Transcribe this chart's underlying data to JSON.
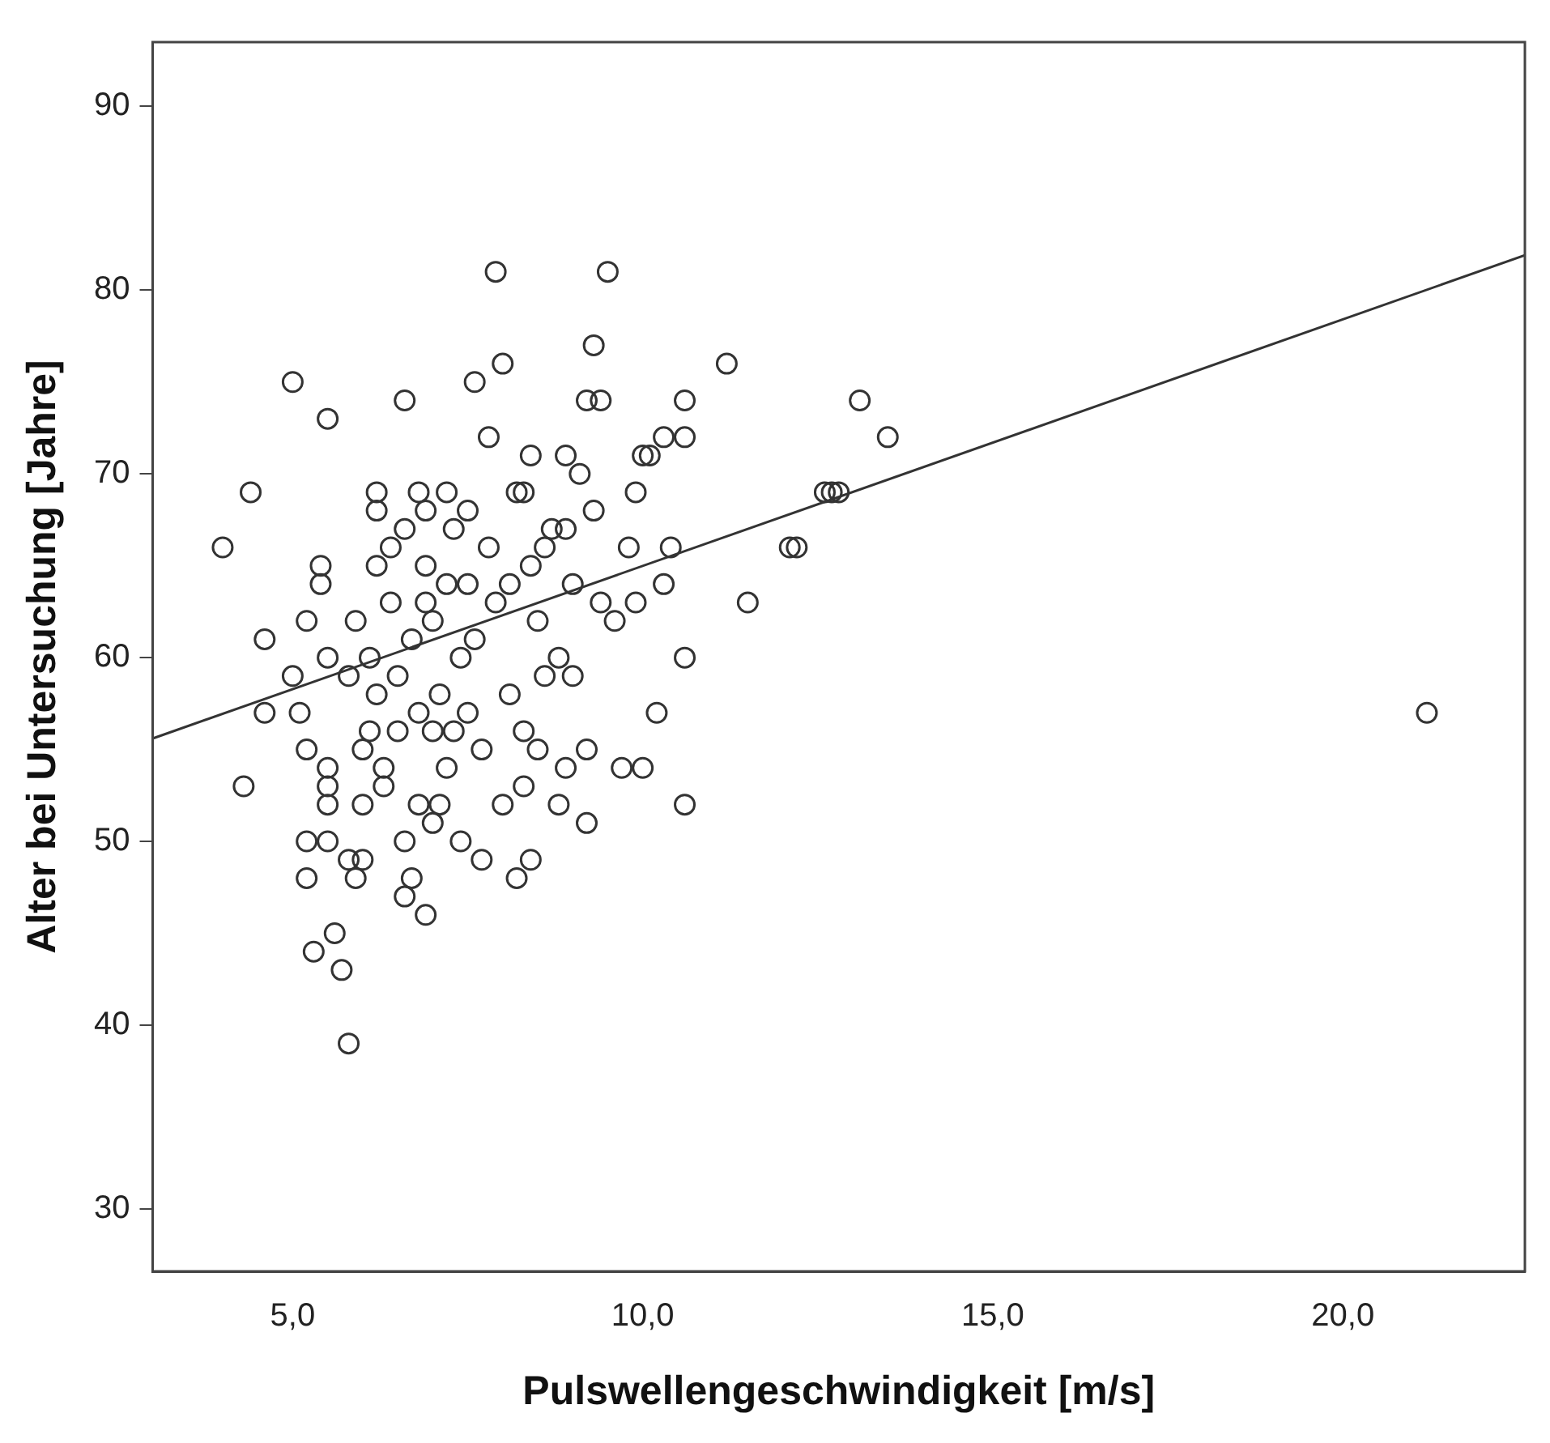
{
  "chart_data": {
    "type": "scatter",
    "xlabel": "Pulswellengeschwindigkeit [m/s]",
    "ylabel": "Alter bei Untersuchung [Jahre]",
    "xlim": [
      3,
      22.6
    ],
    "ylim": [
      26.6,
      93.5
    ],
    "xticks": [
      {
        "value": 5,
        "label": "5,0"
      },
      {
        "value": 10,
        "label": "10,0"
      },
      {
        "value": 15,
        "label": "15,0"
      },
      {
        "value": 20,
        "label": "20,0"
      }
    ],
    "yticks": [
      30,
      40,
      50,
      60,
      70,
      80,
      90
    ],
    "grid": false,
    "legend": false,
    "marker": "circle",
    "series": [
      {
        "type": "scatter",
        "color": "#333333",
        "x": [
          4.0,
          4.3,
          4.4,
          4.6,
          4.6,
          5.0,
          5.5,
          5.0,
          5.1,
          5.2,
          5.2,
          5.2,
          5.2,
          5.3,
          5.4,
          5.4,
          5.5,
          5.5,
          5.5,
          5.5,
          5.5,
          5.6,
          5.7,
          5.8,
          5.8,
          5.8,
          5.9,
          5.9,
          6.0,
          6.0,
          6.0,
          6.1,
          6.1,
          6.2,
          6.2,
          6.2,
          6.2,
          6.3,
          6.3,
          6.4,
          6.4,
          6.5,
          6.5,
          6.6,
          6.6,
          6.6,
          6.6,
          6.7,
          6.7,
          6.8,
          6.8,
          6.8,
          6.9,
          6.9,
          6.9,
          6.9,
          7.0,
          7.0,
          7.0,
          7.1,
          7.1,
          7.2,
          7.2,
          7.2,
          7.3,
          7.3,
          7.4,
          7.4,
          7.5,
          7.5,
          7.5,
          7.6,
          7.6,
          7.7,
          7.7,
          7.8,
          7.8,
          7.9,
          7.9,
          8.0,
          8.0,
          8.1,
          8.1,
          8.2,
          8.2,
          8.3,
          8.3,
          8.3,
          8.4,
          8.4,
          8.4,
          8.5,
          8.5,
          8.6,
          8.6,
          8.7,
          8.8,
          8.8,
          8.9,
          8.9,
          8.9,
          9.0,
          9.0,
          9.1,
          9.2,
          9.2,
          9.2,
          9.3,
          9.3,
          9.4,
          9.4,
          9.5,
          9.6,
          9.7,
          9.8,
          9.9,
          9.9,
          10.0,
          10.0,
          10.1,
          10.2,
          10.3,
          10.3,
          10.4,
          10.6,
          10.6,
          10.6,
          10.6,
          11.2,
          11.5,
          12.1,
          12.2,
          12.6,
          12.7,
          12.8,
          13.1,
          13.5,
          21.2
        ],
        "values": [
          66,
          53,
          69,
          61,
          57,
          75,
          73,
          59,
          57,
          62,
          55,
          50,
          48,
          44,
          65,
          64,
          60,
          54,
          53,
          52,
          50,
          45,
          43,
          39,
          49,
          59,
          62,
          48,
          49,
          55,
          52,
          60,
          56,
          65,
          68,
          69,
          58,
          54,
          53,
          66,
          63,
          56,
          59,
          74,
          67,
          47,
          50,
          61,
          48,
          69,
          52,
          57,
          46,
          65,
          63,
          68,
          51,
          56,
          62,
          58,
          52,
          64,
          54,
          69,
          67,
          56,
          60,
          50,
          68,
          64,
          57,
          75,
          61,
          55,
          49,
          72,
          66,
          81,
          63,
          76,
          52,
          58,
          64,
          69,
          48,
          69,
          56,
          53,
          71,
          65,
          49,
          62,
          55,
          66,
          59,
          67,
          60,
          52,
          67,
          71,
          54,
          64,
          59,
          70,
          74,
          55,
          51,
          77,
          68,
          74,
          63,
          81,
          62,
          54,
          66,
          69,
          63,
          71,
          54,
          71,
          57,
          64,
          72,
          66,
          74,
          72,
          60,
          52,
          76,
          63,
          66,
          66,
          69,
          69,
          69,
          74,
          72,
          57
        ]
      },
      {
        "type": "line",
        "color": "#333333",
        "marker": "none",
        "line_style": "solid",
        "x": [
          3,
          22.6
        ],
        "values": [
          55.6,
          81.9
        ]
      }
    ]
  }
}
